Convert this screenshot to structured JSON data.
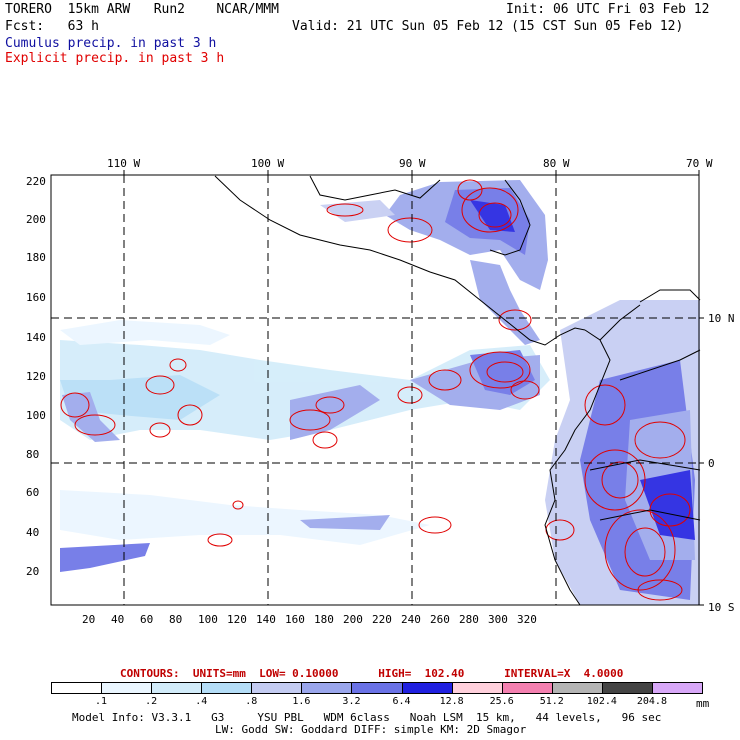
{
  "header": {
    "title": "TORERO  15km ARW   Run2    NCAR/MMM",
    "init": "Init: 06 UTC Fri 03 Feb 12",
    "fcst": "Fcst:   63 h",
    "valid": "Valid: 21 UTC Sun 05 Feb 12 (15 CST Sun 05 Feb 12)",
    "cumulus": "Cumulus precip. in past 3 h",
    "explicit": "Explicit precip. in past 3 h"
  },
  "axes": {
    "top_labels": [
      "110 W",
      "100 W",
      "90 W",
      "80 W",
      "70 W"
    ],
    "right_labels": [
      "10 N",
      "0",
      "10 S"
    ],
    "y_ticks": [
      "220",
      "200",
      "180",
      "160",
      "140",
      "120",
      "100",
      "80",
      "60",
      "40",
      "20"
    ],
    "x_ticks": [
      "20",
      "40",
      "60",
      "80",
      "100",
      "120",
      "140",
      "160",
      "180",
      "200",
      "220",
      "240",
      "260",
      "280",
      "300",
      "320"
    ]
  },
  "contours": {
    "text": "CONTOURS:  UNITS=mm  LOW= 0.10000      HIGH=  102.40      INTERVAL=X  4.0000"
  },
  "colorbar": {
    "labels": [
      ".1",
      ".2",
      ".4",
      ".8",
      "1.6",
      "3.2",
      "6.4",
      "12.8",
      "25.6",
      "51.2",
      "102.4",
      "204.8"
    ],
    "unit": "mm",
    "colors": [
      "#ffffff",
      "#eaf6ff",
      "#d2ecfa",
      "#b4ddf7",
      "#c4ccf2",
      "#9aa6ec",
      "#6a72e6",
      "#2020e0",
      "#ffd0dc",
      "#f480b0",
      "#b4b4b4",
      "#444444",
      "#d8a8f8"
    ]
  },
  "footer": {
    "line1": "Model Info: V3.3.1   G3     YSU PBL   WDM 6class   Noah LSM  15 km,   44 levels,   96 sec",
    "line2": "LW: Godd SW: Goddard DIFF: simple KM: 2D Smagor"
  }
}
